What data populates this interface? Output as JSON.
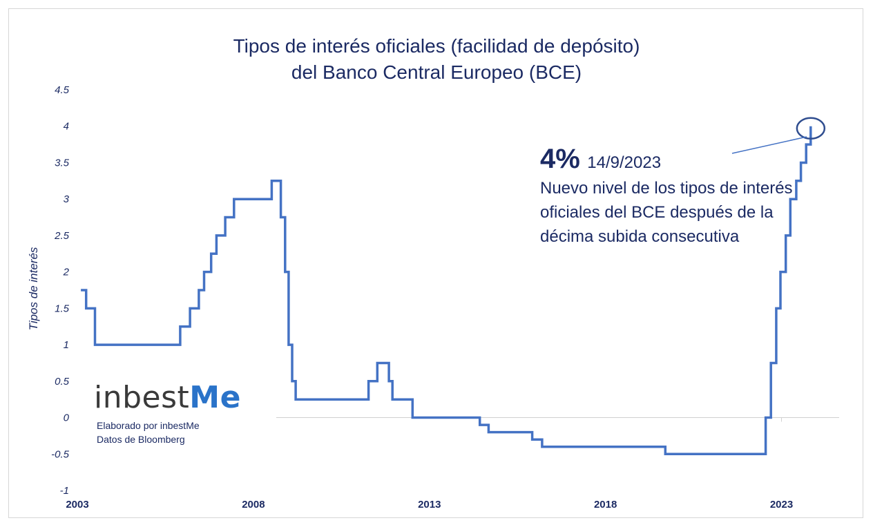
{
  "chart_data": {
    "type": "line",
    "title_line1": "Tipos de interés oficiales (facilidad de depósito)",
    "title_line2": "del Banco Central Europeo (BCE)",
    "ylabel": "Tipos de interés",
    "xlabel": "",
    "ylim": [
      -1,
      4.5
    ],
    "xlim": [
      2003.0,
      2024.5
    ],
    "yticks": [
      "4.5",
      "4",
      "3.5",
      "3",
      "2.5",
      "2",
      "1.5",
      "1",
      "0.5",
      "0",
      "-0.5",
      "-1"
    ],
    "xticks": [
      "2003",
      "2008",
      "2013",
      "2018",
      "2023"
    ],
    "grid": false,
    "series": [
      {
        "color": "#4472c4",
        "points": [
          [
            2003.1,
            1.75
          ],
          [
            2003.25,
            1.75
          ],
          [
            2003.25,
            1.5
          ],
          [
            2003.5,
            1.5
          ],
          [
            2003.5,
            1.0
          ],
          [
            2005.92,
            1.0
          ],
          [
            2005.92,
            1.25
          ],
          [
            2006.2,
            1.25
          ],
          [
            2006.2,
            1.5
          ],
          [
            2006.45,
            1.5
          ],
          [
            2006.45,
            1.75
          ],
          [
            2006.6,
            1.75
          ],
          [
            2006.6,
            2.0
          ],
          [
            2006.8,
            2.0
          ],
          [
            2006.8,
            2.25
          ],
          [
            2006.95,
            2.25
          ],
          [
            2006.95,
            2.5
          ],
          [
            2007.2,
            2.5
          ],
          [
            2007.2,
            2.75
          ],
          [
            2007.45,
            2.75
          ],
          [
            2007.45,
            3.0
          ],
          [
            2008.52,
            3.0
          ],
          [
            2008.52,
            3.25
          ],
          [
            2008.78,
            3.25
          ],
          [
            2008.78,
            2.75
          ],
          [
            2008.9,
            2.75
          ],
          [
            2008.9,
            2.0
          ],
          [
            2009.0,
            2.0
          ],
          [
            2009.0,
            1.0
          ],
          [
            2009.1,
            1.0
          ],
          [
            2009.1,
            0.5
          ],
          [
            2009.2,
            0.5
          ],
          [
            2009.2,
            0.25
          ],
          [
            2011.27,
            0.25
          ],
          [
            2011.27,
            0.5
          ],
          [
            2011.52,
            0.5
          ],
          [
            2011.52,
            0.75
          ],
          [
            2011.85,
            0.75
          ],
          [
            2011.85,
            0.5
          ],
          [
            2011.95,
            0.5
          ],
          [
            2011.95,
            0.25
          ],
          [
            2012.52,
            0.25
          ],
          [
            2012.52,
            0.0
          ],
          [
            2014.43,
            0.0
          ],
          [
            2014.43,
            -0.1
          ],
          [
            2014.68,
            -0.1
          ],
          [
            2014.68,
            -0.2
          ],
          [
            2015.92,
            -0.2
          ],
          [
            2015.92,
            -0.3
          ],
          [
            2016.2,
            -0.3
          ],
          [
            2016.2,
            -0.4
          ],
          [
            2019.7,
            -0.4
          ],
          [
            2019.7,
            -0.5
          ],
          [
            2022.55,
            -0.5
          ],
          [
            2022.55,
            0.0
          ],
          [
            2022.7,
            0.0
          ],
          [
            2022.7,
            0.75
          ],
          [
            2022.85,
            0.75
          ],
          [
            2022.85,
            1.5
          ],
          [
            2022.97,
            1.5
          ],
          [
            2022.97,
            2.0
          ],
          [
            2023.12,
            2.0
          ],
          [
            2023.12,
            2.5
          ],
          [
            2023.25,
            2.5
          ],
          [
            2023.25,
            3.0
          ],
          [
            2023.42,
            3.0
          ],
          [
            2023.42,
            3.25
          ],
          [
            2023.55,
            3.25
          ],
          [
            2023.55,
            3.5
          ],
          [
            2023.7,
            3.5
          ],
          [
            2023.7,
            3.75
          ],
          [
            2023.83,
            3.75
          ],
          [
            2023.83,
            4.0
          ]
        ]
      }
    ],
    "annotation": {
      "value": "4%",
      "date": "14/9/2023",
      "text": "Nuevo nivel de los tipos de interés oficiales del BCE después de la décima subida consecutiva",
      "highlight_point": [
        2023.83,
        4.0
      ]
    }
  },
  "branding": {
    "logo_text_main": "inbest",
    "logo_text_accent": "Me",
    "credit_line1": "Elaborado por inbestMe",
    "credit_line2": "Datos de Bloomberg",
    "accent_color": "#2a73c9"
  },
  "colors": {
    "text": "#1b2a63",
    "line": "#4472c4"
  }
}
